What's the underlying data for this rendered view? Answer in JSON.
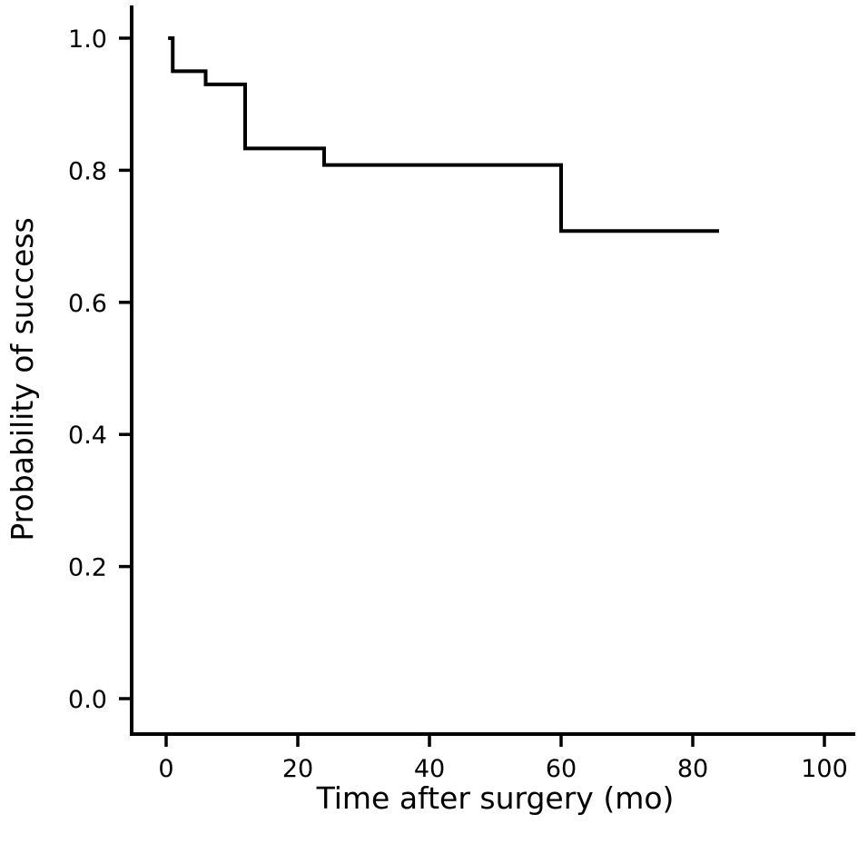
{
  "chart_data": {
    "type": "line",
    "style": "step",
    "xlabel": "Time after surgery (mo)",
    "ylabel": "Probability of success",
    "xlim": [
      0,
      100
    ],
    "ylim": [
      0,
      1.0
    ],
    "x_ticks": [
      0,
      20,
      40,
      60,
      80,
      100
    ],
    "y_ticks": [
      0.0,
      0.2,
      0.4,
      0.6,
      0.8,
      1.0
    ],
    "x_tick_labels": [
      "0",
      "20",
      "40",
      "60",
      "80",
      "100"
    ],
    "y_tick_labels": [
      "0.0",
      "0.2",
      "0.4",
      "0.6",
      "0.8",
      "1.0"
    ],
    "grid": false,
    "legend": "none",
    "series": [
      {
        "color": "#000000",
        "x": [
          0.3,
          1,
          6,
          12,
          24,
          60,
          84
        ],
        "y": [
          1.0,
          0.95,
          0.93,
          0.833,
          0.808,
          0.708,
          0.708
        ]
      }
    ]
  }
}
